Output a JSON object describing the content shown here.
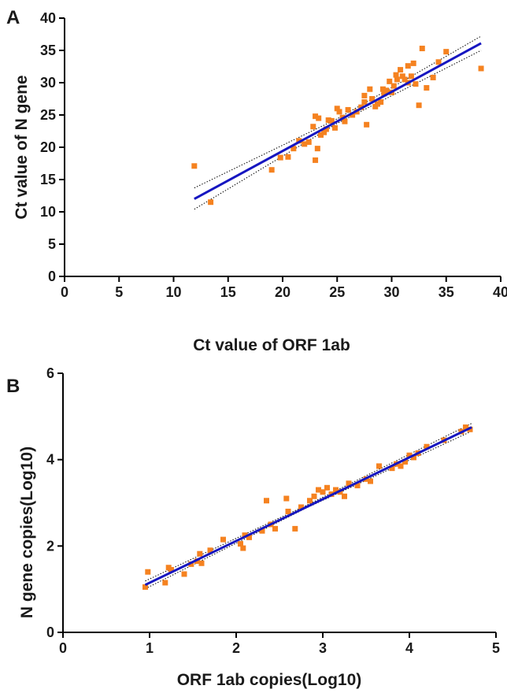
{
  "colors": {
    "points": "#f58220",
    "fit": "#1616c0",
    "ci": "#000000",
    "axis": "#000000"
  },
  "chart_data": [
    {
      "type": "scatter",
      "panel": "A",
      "xlabel": "Ct value of  ORF 1ab",
      "ylabel": "Ct value of N gene",
      "xlim": [
        0,
        40
      ],
      "ylim": [
        0,
        40
      ],
      "xticks": [
        0,
        5,
        10,
        15,
        20,
        25,
        30,
        35,
        40
      ],
      "yticks": [
        0,
        5,
        10,
        15,
        20,
        25,
        30,
        35,
        40
      ],
      "grid": false,
      "fit_line": {
        "x": [
          11.9,
          38.2
        ],
        "y": [
          12.0,
          36.1
        ]
      },
      "ci_upper": {
        "x": [
          11.9,
          25.0,
          38.2
        ],
        "y": [
          13.7,
          24.4,
          37.2
        ]
      },
      "ci_lower": {
        "x": [
          11.9,
          25.0,
          38.2
        ],
        "y": [
          10.4,
          23.7,
          35.0
        ]
      },
      "points": {
        "x": [
          11.9,
          13.4,
          19.0,
          19.8,
          20.5,
          21.0,
          21.5,
          22.0,
          22.8,
          23.0,
          23.0,
          23.2,
          23.5,
          23.8,
          24.2,
          24.5,
          24.8,
          25.0,
          25.2,
          25.5,
          26.0,
          26.4,
          26.8,
          27.2,
          27.5,
          27.7,
          28.0,
          28.2,
          28.5,
          28.7,
          29.0,
          29.3,
          29.5,
          29.8,
          30.0,
          30.2,
          30.5,
          30.8,
          31.0,
          31.2,
          31.5,
          31.5,
          31.8,
          32.0,
          32.2,
          32.5,
          32.8,
          33.2,
          33.8,
          34.3,
          35.0,
          38.2,
          24.0,
          25.7,
          27.5,
          29.2,
          30.4,
          23.3,
          22.4
        ],
        "y": [
          17.1,
          11.5,
          16.5,
          18.4,
          18.5,
          19.8,
          21.0,
          20.5,
          23.2,
          18.0,
          24.8,
          19.8,
          21.9,
          22.3,
          24.2,
          24.1,
          23.0,
          26.0,
          25.5,
          24.6,
          25.8,
          25.0,
          25.5,
          26.2,
          28.0,
          23.5,
          29.0,
          27.5,
          26.3,
          26.7,
          27.0,
          28.3,
          28.8,
          30.2,
          28.5,
          29.5,
          30.5,
          32.0,
          31.0,
          30.5,
          30.0,
          32.6,
          31.0,
          33.0,
          29.8,
          26.5,
          35.3,
          29.2,
          30.8,
          33.2,
          34.8,
          32.2,
          22.8,
          24.0,
          27.0,
          29.0,
          31.2,
          24.5,
          20.8
        ]
      }
    },
    {
      "type": "scatter",
      "panel": "B",
      "xlabel": "ORF 1ab copies(Log10)",
      "ylabel": "N gene copies(Log10)",
      "xlim": [
        0,
        5
      ],
      "ylim": [
        0,
        6
      ],
      "xticks": [
        0,
        1,
        2,
        3,
        4,
        5
      ],
      "yticks": [
        0,
        2,
        4,
        6
      ],
      "grid": false,
      "fit_line": {
        "x": [
          0.95,
          4.72
        ],
        "y": [
          1.1,
          4.75
        ]
      },
      "ci_upper": {
        "x": [
          0.95,
          2.8,
          4.72
        ],
        "y": [
          1.19,
          2.93,
          4.84
        ]
      },
      "ci_lower": {
        "x": [
          0.95,
          2.8,
          4.72
        ],
        "y": [
          1.01,
          2.87,
          4.66
        ]
      },
      "points": {
        "x": [
          0.95,
          0.98,
          1.18,
          1.22,
          1.25,
          1.4,
          1.48,
          1.55,
          1.58,
          1.6,
          1.7,
          1.85,
          2.05,
          2.08,
          2.1,
          2.15,
          2.35,
          2.4,
          2.45,
          2.58,
          2.6,
          2.68,
          2.75,
          2.85,
          2.9,
          2.95,
          3.0,
          3.05,
          3.1,
          3.2,
          3.25,
          3.3,
          3.4,
          3.5,
          3.55,
          3.65,
          3.8,
          3.85,
          3.9,
          3.95,
          4.0,
          4.05,
          4.1,
          4.2,
          4.4,
          4.6,
          4.65,
          4.7,
          3.15,
          2.3
        ],
        "y": [
          1.05,
          1.4,
          1.15,
          1.5,
          1.45,
          1.35,
          1.58,
          1.65,
          1.82,
          1.6,
          1.9,
          2.15,
          2.05,
          1.95,
          2.25,
          2.2,
          3.05,
          2.5,
          2.4,
          3.1,
          2.8,
          2.4,
          2.9,
          3.05,
          3.15,
          3.3,
          3.25,
          3.35,
          3.2,
          3.25,
          3.15,
          3.45,
          3.4,
          3.55,
          3.5,
          3.85,
          3.8,
          3.9,
          3.85,
          3.95,
          4.1,
          4.05,
          4.15,
          4.3,
          4.45,
          4.65,
          4.75,
          4.7,
          3.3,
          2.35
        ]
      }
    }
  ]
}
